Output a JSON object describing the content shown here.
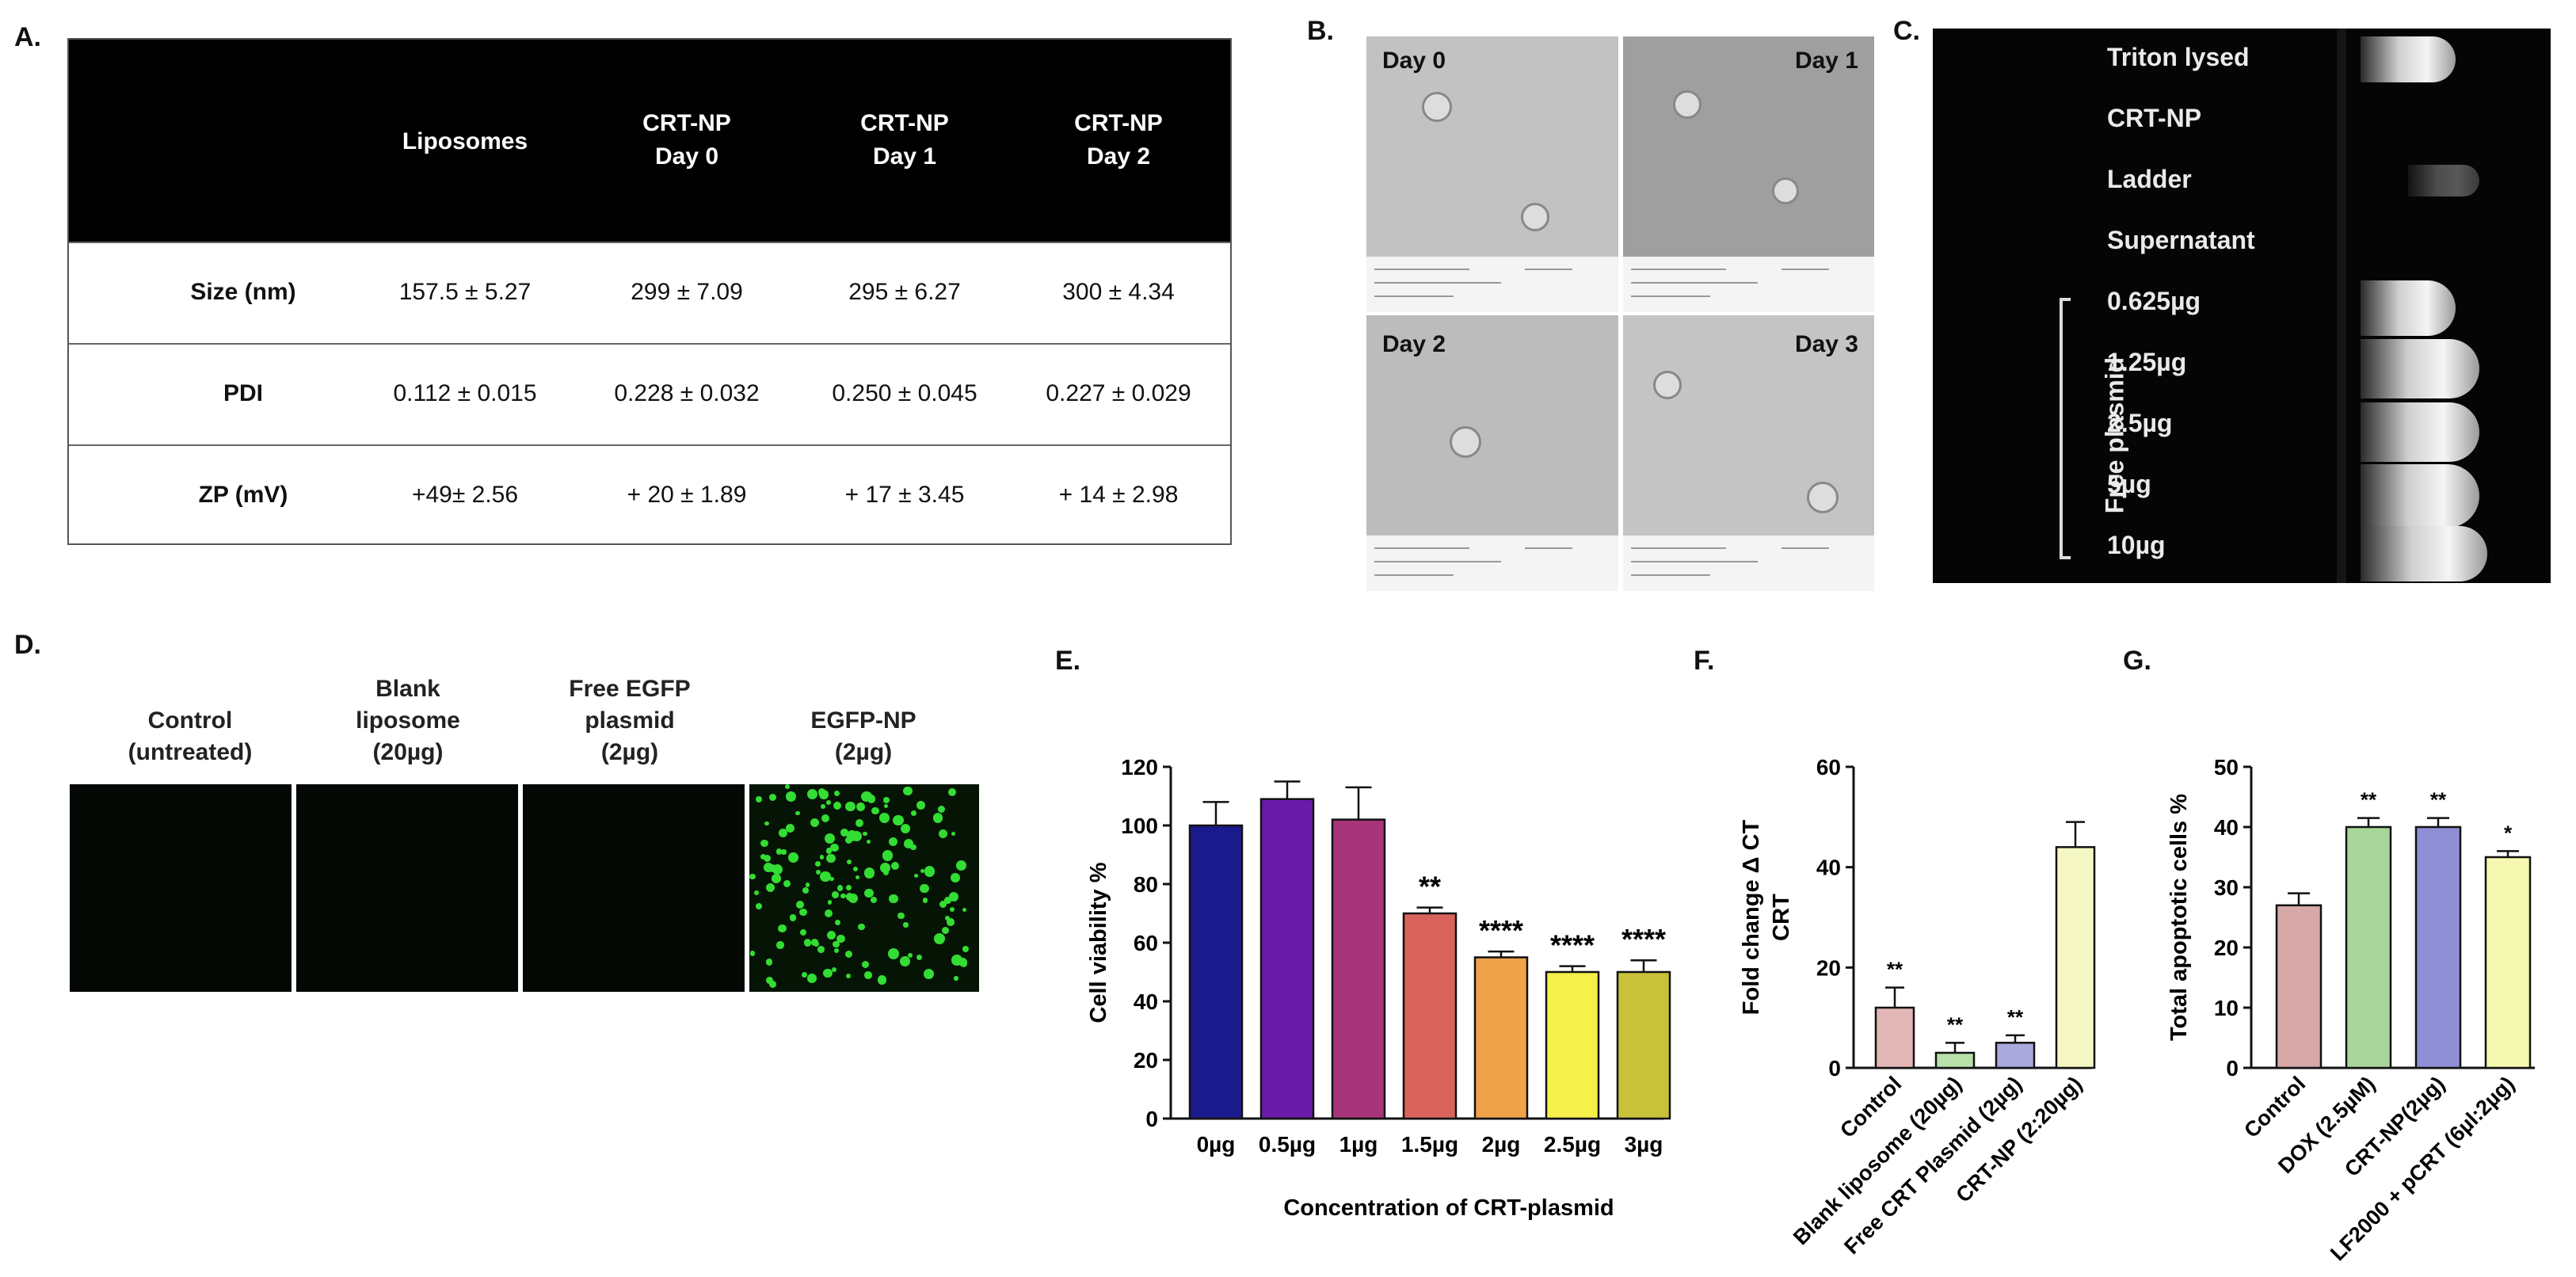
{
  "panel_labels": {
    "a": "A.",
    "b": "B.",
    "c": "C.",
    "d": "D.",
    "e": "E.",
    "f": "F.",
    "g": "G."
  },
  "table": {
    "headers": [
      "Liposomes",
      "CRT-NP\nDay 0",
      "CRT-NP\nDay 1",
      "CRT-NP\nDay 2"
    ],
    "rows": [
      {
        "label": "Size (nm)",
        "values": [
          "157.5 ± 5.27",
          "299 ± 7.09",
          "295 ± 6.27",
          "300 ±  4.34"
        ]
      },
      {
        "label": "PDI",
        "values": [
          "0.112 ± 0.015",
          "0.228 ± 0.032",
          "0.250 ± 0.045",
          "0.227 ± 0.029"
        ]
      },
      {
        "label": "ZP (mV)",
        "values": [
          "+49± 2.56",
          "+ 20 ± 1.89",
          "+ 17 ± 3.45",
          "+ 14 ± 2.98"
        ]
      }
    ]
  },
  "tem": {
    "day0": "Day 0",
    "day1": "Day 1",
    "day2": "Day 2",
    "day3": "Day 3"
  },
  "gel": {
    "lanes": [
      "Triton lysed",
      "CRT-NP",
      "Ladder",
      "Supernatant",
      "0.625µg",
      "1.25µg",
      "2.5µg",
      "5µg",
      "10µg"
    ],
    "group_label": "Free plasmid"
  },
  "micro": {
    "labels": [
      "Control\n(untreated)",
      "Blank\nliposome\n(20µg)",
      "Free EGFP\nplasmid\n(2µg)",
      "EGFP-NP\n(2µg)"
    ]
  },
  "chart_data": [
    {
      "type": "bar",
      "panel": "E",
      "categories": [
        "0µg",
        "0.5µg",
        "1µg",
        "1.5µg",
        "2µg",
        "2.5µg",
        "3µg"
      ],
      "values": [
        100,
        109,
        102,
        70,
        55,
        50,
        50
      ],
      "errors": [
        8,
        6,
        11,
        2,
        2,
        2,
        4
      ],
      "significance": [
        "",
        "",
        "",
        "**",
        "****",
        "****",
        "****"
      ],
      "colors": [
        "#1a1a8c",
        "#6a1aa8",
        "#a8347a",
        "#d9635a",
        "#f0a24a",
        "#f5f04a",
        "#c8c23a"
      ],
      "xlabel": "Concentration of CRT-plasmid",
      "ylabel": "Cell viability %",
      "ylim": [
        0,
        120
      ],
      "yticks": [
        0,
        20,
        40,
        60,
        80,
        100,
        120
      ]
    },
    {
      "type": "bar",
      "panel": "F",
      "categories": [
        "Control",
        "Blank liposome (20µg)",
        "Free CRT Plasmid (2µg)",
        "CRT-NP (2:20µg)"
      ],
      "values": [
        12,
        3,
        5,
        44
      ],
      "errors": [
        4,
        2,
        1.5,
        5
      ],
      "significance": [
        "**",
        "**",
        "**",
        ""
      ],
      "colors": [
        "#e3b6b6",
        "#b8e0a8",
        "#a9a9dc",
        "#f5f8c4"
      ],
      "ylabel": "Fold change Δ CT\nCRT",
      "ylim": [
        0,
        60
      ],
      "yticks": [
        0,
        20,
        40,
        60
      ]
    },
    {
      "type": "bar",
      "panel": "G",
      "categories": [
        "Control",
        "DOX (2.5µM)",
        "CRT-NP(2µg)",
        "LF2000 + pCRT (6µl:2µg)"
      ],
      "values": [
        27,
        40,
        40,
        35
      ],
      "errors": [
        2,
        1.5,
        1.5,
        1
      ],
      "significance": [
        "",
        "**",
        "**",
        "*"
      ],
      "colors": [
        "#d6a8a8",
        "#a8d69a",
        "#8f8fd6",
        "#f5f8b0"
      ],
      "ylabel": "Total apoptotic cells %",
      "ylim": [
        0,
        50
      ],
      "yticks": [
        0,
        10,
        20,
        30,
        40,
        50
      ]
    }
  ]
}
